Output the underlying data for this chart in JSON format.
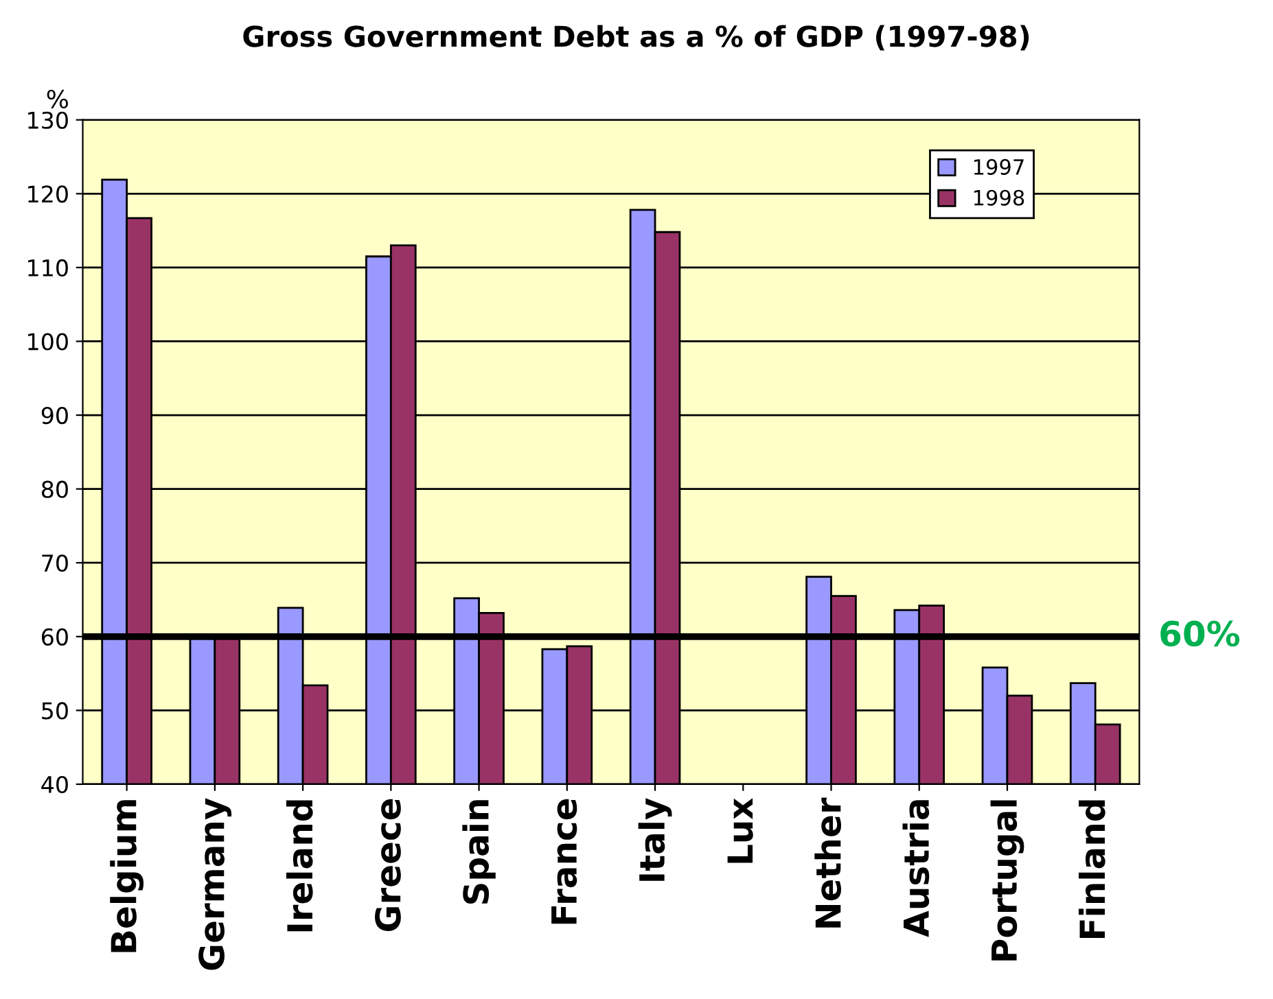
{
  "chart_data": {
    "type": "bar",
    "title": "Gross Government Debt as a % of GDP (1997-98)",
    "ylabel": "%",
    "categories": [
      "Belgium",
      "Germany",
      "Ireland",
      "Greece",
      "Spain",
      "France",
      "Italy",
      "Lux",
      "Nether",
      "Austria",
      "Portugal",
      "Finland"
    ],
    "series": [
      {
        "name": "1997",
        "color": "#9999ff",
        "values": [
          121.9,
          59.8,
          63.9,
          111.5,
          65.2,
          58.3,
          117.8,
          null,
          68.1,
          63.6,
          55.8,
          53.7
        ]
      },
      {
        "name": "1998",
        "color": "#993366",
        "values": [
          116.7,
          60.3,
          53.4,
          113.0,
          63.2,
          58.7,
          114.8,
          null,
          65.5,
          64.2,
          52.0,
          48.1
        ]
      }
    ],
    "ylim": [
      40,
      130
    ],
    "yticks": [
      40,
      50,
      60,
      70,
      80,
      90,
      100,
      110,
      120,
      130
    ],
    "grid": "y",
    "legend": "top right",
    "ref_lines": [
      {
        "axis": "y",
        "value": 60,
        "label": "60%",
        "color": "#000000"
      }
    ]
  }
}
